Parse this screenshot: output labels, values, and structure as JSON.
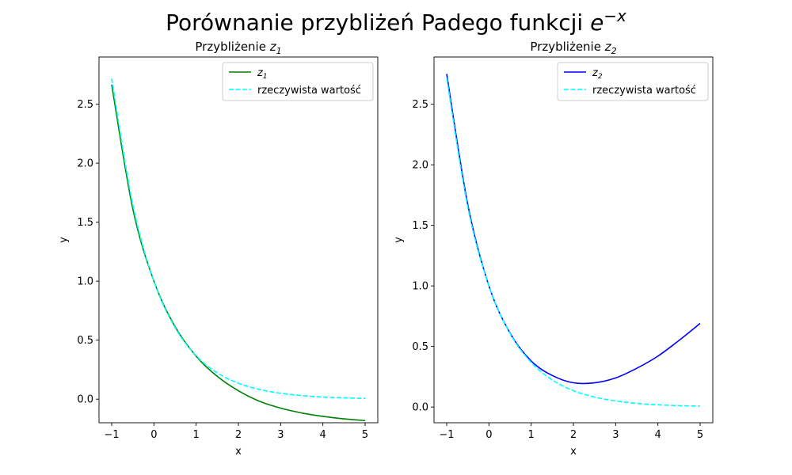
{
  "figure": {
    "title_prefix": "Porównanie przybliżeń Padego funkcji ",
    "title_math": "e",
    "title_math_sup": "−x"
  },
  "chart_data": [
    {
      "type": "line",
      "title_prefix": "Przybliżenie ",
      "title_math": "z",
      "title_math_sub": "1",
      "xlabel": "x",
      "ylabel": "y",
      "xlim": [
        -1.3,
        5.3
      ],
      "ylim": [
        -0.2,
        2.9
      ],
      "xticks": [
        -1,
        0,
        1,
        2,
        3,
        4,
        5
      ],
      "yticks": [
        0.0,
        0.5,
        1.0,
        1.5,
        2.0,
        2.5
      ],
      "xtick_labels": [
        "−1",
        "0",
        "1",
        "2",
        "3",
        "4",
        "5"
      ],
      "ytick_labels": [
        "0.0",
        "0.5",
        "1.0",
        "1.5",
        "2.0",
        "2.5"
      ],
      "grid": false,
      "legend_position": "upper right",
      "x": [
        -1.0,
        -0.5,
        0.0,
        0.5,
        1.0,
        1.5,
        2.0,
        2.5,
        3.0,
        3.5,
        4.0,
        4.5,
        5.0
      ],
      "series": [
        {
          "name": "z",
          "name_sub": "1",
          "color": "#008000",
          "style": "solid",
          "values": [
            2.667,
            1.614,
            1.0,
            0.615,
            0.364,
            0.193,
            0.071,
            -0.018,
            -0.076,
            -0.117,
            -0.146,
            -0.167,
            -0.182
          ]
        },
        {
          "name": "rzeczywista wartość",
          "color": "#00ffff",
          "style": "dashed",
          "values": [
            2.718,
            1.649,
            1.0,
            0.607,
            0.368,
            0.223,
            0.135,
            0.082,
            0.05,
            0.03,
            0.018,
            0.011,
            0.007
          ]
        }
      ]
    },
    {
      "type": "line",
      "title_prefix": "Przybliżenie ",
      "title_math": "z",
      "title_math_sub": "2",
      "xlabel": "x",
      "ylabel": "y",
      "xlim": [
        -1.3,
        5.3
      ],
      "ylim": [
        -0.13,
        2.89
      ],
      "xticks": [
        -1,
        0,
        1,
        2,
        3,
        4,
        5
      ],
      "yticks": [
        0.0,
        0.5,
        1.0,
        1.5,
        2.0,
        2.5
      ],
      "xtick_labels": [
        "−1",
        "0",
        "1",
        "2",
        "3",
        "4",
        "5"
      ],
      "ytick_labels": [
        "0.0",
        "0.5",
        "1.0",
        "1.5",
        "2.0",
        "2.5"
      ],
      "grid": false,
      "legend_position": "upper right",
      "x": [
        -1.0,
        -0.5,
        0.0,
        0.5,
        1.0,
        1.5,
        2.0,
        2.5,
        3.0,
        3.5,
        4.0,
        4.5,
        5.0
      ],
      "series": [
        {
          "name": "z",
          "name_sub": "2",
          "color": "#0000ff",
          "style": "solid",
          "values": [
            2.75,
            1.67,
            1.0,
            0.61,
            0.38,
            0.26,
            0.2,
            0.2,
            0.24,
            0.32,
            0.42,
            0.55,
            0.69
          ]
        },
        {
          "name": "rzeczywista wartość",
          "color": "#00ffff",
          "style": "dashed",
          "values": [
            2.718,
            1.649,
            1.0,
            0.607,
            0.368,
            0.223,
            0.135,
            0.082,
            0.05,
            0.03,
            0.018,
            0.011,
            0.007
          ]
        }
      ]
    }
  ]
}
